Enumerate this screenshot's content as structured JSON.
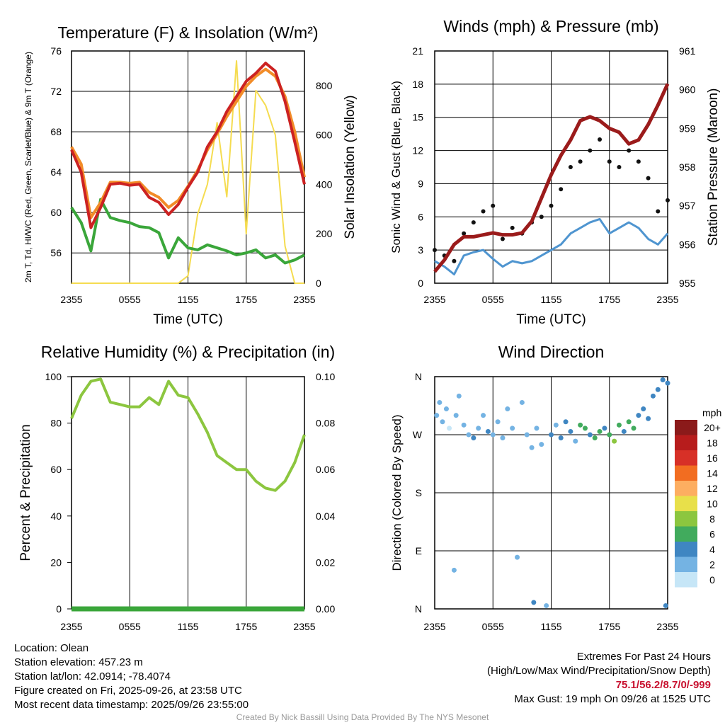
{
  "chart_data": [
    {
      "type": "line",
      "title": "Temperature (F) & Insolation (W/m²)",
      "xlabel": "Time (UTC)",
      "ylabel": "2m T, Td, HI/WC (Red, Green, Scarlet/Blue) & 9m T (Orange)",
      "ylabel_right": "Solar Insolation (Yellow)",
      "x_ticks": [
        "2355",
        "0555",
        "1155",
        "1755",
        "2355"
      ],
      "ylim": [
        53,
        76
      ],
      "y_ticks": [
        56,
        60,
        64,
        68,
        72,
        76
      ],
      "ylim_right": [
        0,
        940
      ],
      "y_ticks_right": [
        0,
        200,
        400,
        600,
        800
      ],
      "x_hours": [
        0,
        1,
        2,
        3,
        4,
        5,
        6,
        7,
        8,
        9,
        10,
        11,
        12,
        13,
        14,
        15,
        16,
        17,
        18,
        19,
        20,
        21,
        22,
        23,
        24
      ],
      "series": [
        {
          "name": "2m T",
          "color": "#cc2222",
          "axis": "left",
          "values": [
            66.2,
            64.0,
            58.5,
            60.5,
            62.8,
            62.9,
            62.7,
            62.8,
            61.5,
            61.0,
            59.8,
            60.8,
            62.5,
            64.0,
            66.5,
            68.0,
            70.0,
            71.5,
            73.0,
            73.8,
            74.8,
            74.0,
            71.0,
            67.0,
            62.8
          ]
        },
        {
          "name": "9m T",
          "color": "#f28c28",
          "axis": "left",
          "values": [
            66.5,
            64.8,
            59.5,
            61.0,
            63.0,
            63.0,
            62.9,
            63.0,
            62.0,
            61.5,
            60.5,
            61.2,
            62.6,
            64.2,
            66.2,
            67.8,
            69.5,
            71.0,
            72.5,
            73.5,
            74.2,
            73.5,
            71.5,
            68.0,
            63.5
          ]
        },
        {
          "name": "Td",
          "color": "#3aa63a",
          "axis": "left",
          "values": [
            60.5,
            59.0,
            56.2,
            61.3,
            59.5,
            59.2,
            59.0,
            58.6,
            58.5,
            58.0,
            55.5,
            57.5,
            56.5,
            56.3,
            56.8,
            56.5,
            56.2,
            55.8,
            56.0,
            56.3,
            55.5,
            55.8,
            55.0,
            55.3,
            55.8
          ]
        },
        {
          "name": "Solar Insolation",
          "color": "#f5dc50",
          "axis": "right",
          "values": [
            0,
            0,
            0,
            0,
            0,
            0,
            0,
            0,
            0,
            0,
            0,
            0,
            30,
            280,
            400,
            650,
            350,
            900,
            200,
            780,
            720,
            600,
            150,
            0,
            0
          ]
        }
      ]
    },
    {
      "type": "line",
      "title": "Winds (mph) & Pressure (mb)",
      "xlabel": "Time (UTC)",
      "ylabel": "Sonic Wind & Gust (Blue, Black)",
      "ylabel_right": "Station Pressure (Maroon)",
      "x_ticks": [
        "2355",
        "0555",
        "1155",
        "1755",
        "2355"
      ],
      "ylim": [
        0,
        21
      ],
      "y_ticks": [
        0,
        3,
        6,
        9,
        12,
        15,
        18,
        21
      ],
      "ylim_right": [
        955,
        961
      ],
      "y_ticks_right": [
        955,
        956,
        957,
        958,
        959,
        960,
        961
      ],
      "x_hours": [
        0,
        1,
        2,
        3,
        4,
        5,
        6,
        7,
        8,
        9,
        10,
        11,
        12,
        13,
        14,
        15,
        16,
        17,
        18,
        19,
        20,
        21,
        22,
        23,
        24
      ],
      "series": [
        {
          "name": "Sonic Wind",
          "color": "#4f95d0",
          "axis": "left",
          "values": [
            2.0,
            1.5,
            0.8,
            2.5,
            2.8,
            3.0,
            2.2,
            1.5,
            2.0,
            1.8,
            2.0,
            2.5,
            3.0,
            3.5,
            4.5,
            5.0,
            5.5,
            5.8,
            4.5,
            5.0,
            5.5,
            5.0,
            4.0,
            3.5,
            4.5
          ]
        },
        {
          "name": "Gust",
          "color": "#111111",
          "axis": "left",
          "style": "dots",
          "values": [
            3.0,
            2.5,
            2.0,
            4.5,
            5.5,
            6.5,
            7.0,
            4.0,
            5.0,
            4.5,
            5.5,
            6.0,
            7.0,
            8.5,
            10.5,
            11.0,
            12.0,
            13.0,
            11.0,
            10.5,
            12.0,
            11.0,
            9.5,
            6.5,
            7.5
          ]
        },
        {
          "name": "Station Pressure",
          "color": "#9b1b1b",
          "axis": "right",
          "values": [
            955.3,
            955.6,
            956.0,
            956.2,
            956.2,
            956.25,
            956.3,
            956.25,
            956.25,
            956.3,
            956.6,
            957.2,
            957.8,
            958.3,
            958.7,
            959.2,
            959.3,
            959.2,
            959.0,
            958.9,
            958.6,
            958.7,
            959.1,
            959.6,
            960.15
          ]
        }
      ]
    },
    {
      "type": "line",
      "title": "Relative Humidity (%) & Precipitation (in)",
      "xlabel": "",
      "ylabel": "Percent & Precipitation",
      "x_ticks": [
        "2355",
        "0555",
        "1155",
        "1755",
        "2355"
      ],
      "ylim": [
        0,
        100
      ],
      "y_ticks": [
        0,
        20,
        40,
        60,
        80,
        100
      ],
      "ylim_right": [
        0,
        0.1
      ],
      "y_ticks_right": [
        "0.00",
        "0.02",
        "0.04",
        "0.06",
        "0.08",
        "0.10"
      ],
      "x_hours": [
        0,
        1,
        2,
        3,
        4,
        5,
        6,
        7,
        8,
        9,
        10,
        11,
        12,
        13,
        14,
        15,
        16,
        17,
        18,
        19,
        20,
        21,
        22,
        23,
        24
      ],
      "series": [
        {
          "name": "Relative Humidity",
          "color": "#8cc63f",
          "axis": "left",
          "values": [
            82,
            92,
            98,
            99,
            89,
            88,
            87,
            87,
            91,
            88,
            98,
            92,
            91,
            84,
            76,
            66,
            63,
            60,
            60,
            55,
            52,
            51,
            55,
            63,
            75
          ]
        },
        {
          "name": "Precipitation",
          "color": "#3aa63a",
          "axis": "right",
          "values": [
            0,
            0,
            0,
            0,
            0,
            0,
            0,
            0,
            0,
            0,
            0,
            0,
            0,
            0,
            0,
            0,
            0,
            0,
            0,
            0,
            0,
            0,
            0,
            0,
            0
          ]
        }
      ]
    },
    {
      "type": "scatter",
      "title": "Wind Direction",
      "ylabel": "Direction (Colored By Speed)",
      "x_ticks": [
        "2355",
        "0555",
        "1155",
        "1755",
        "2355"
      ],
      "y_ticks": [
        "N",
        "E",
        "S",
        "W",
        "N"
      ],
      "ylim": [
        0,
        360
      ],
      "legend_title": "mph",
      "legend_labels": [
        "20+",
        "18",
        "16",
        "14",
        "12",
        "10",
        "8",
        "6",
        "4",
        "2",
        "0"
      ],
      "legend_colors": [
        "#8b1a1a",
        "#b71c1c",
        "#d73027",
        "#f26d21",
        "#fdae61",
        "#e8e04a",
        "#8cc63f",
        "#41ab5d",
        "#3f86c2",
        "#74b3e3",
        "#c6e6f7"
      ],
      "points": [
        {
          "hour": 0.2,
          "dir": 300,
          "speed": 1
        },
        {
          "hour": 0.5,
          "dir": 320,
          "speed": 1
        },
        {
          "hour": 0.8,
          "dir": 290,
          "speed": 2
        },
        {
          "hour": 1.2,
          "dir": 310,
          "speed": 1
        },
        {
          "hour": 1.5,
          "dir": 280,
          "speed": 0
        },
        {
          "hour": 2.0,
          "dir": 60,
          "speed": 2
        },
        {
          "hour": 2.2,
          "dir": 300,
          "speed": 2
        },
        {
          "hour": 2.5,
          "dir": 330,
          "speed": 1
        },
        {
          "hour": 3.0,
          "dir": 285,
          "speed": 2
        },
        {
          "hour": 3.5,
          "dir": 270,
          "speed": 2
        },
        {
          "hour": 4.0,
          "dir": 265,
          "speed": 3
        },
        {
          "hour": 4.5,
          "dir": 280,
          "speed": 2
        },
        {
          "hour": 5.0,
          "dir": 300,
          "speed": 2
        },
        {
          "hour": 5.5,
          "dir": 275,
          "speed": 3
        },
        {
          "hour": 6.0,
          "dir": 270,
          "speed": 2
        },
        {
          "hour": 6.5,
          "dir": 290,
          "speed": 1
        },
        {
          "hour": 7.0,
          "dir": 265,
          "speed": 2
        },
        {
          "hour": 7.5,
          "dir": 310,
          "speed": 1
        },
        {
          "hour": 8.0,
          "dir": 280,
          "speed": 2
        },
        {
          "hour": 8.5,
          "dir": 80,
          "speed": 2
        },
        {
          "hour": 9.0,
          "dir": 320,
          "speed": 2
        },
        {
          "hour": 9.5,
          "dir": 270,
          "speed": 2
        },
        {
          "hour": 10.0,
          "dir": 250,
          "speed": 2
        },
        {
          "hour": 10.2,
          "dir": 10,
          "speed": 3
        },
        {
          "hour": 10.5,
          "dir": 280,
          "speed": 2
        },
        {
          "hour": 11.0,
          "dir": 255,
          "speed": 2
        },
        {
          "hour": 11.5,
          "dir": 5,
          "speed": 2
        },
        {
          "hour": 12.0,
          "dir": 270,
          "speed": 3
        },
        {
          "hour": 12.5,
          "dir": 285,
          "speed": 2
        },
        {
          "hour": 13.0,
          "dir": 265,
          "speed": 4
        },
        {
          "hour": 13.5,
          "dir": 290,
          "speed": 3
        },
        {
          "hour": 14.0,
          "dir": 275,
          "speed": 4
        },
        {
          "hour": 14.5,
          "dir": 260,
          "speed": 2
        },
        {
          "hour": 15.0,
          "dir": 285,
          "speed": 5
        },
        {
          "hour": 15.5,
          "dir": 280,
          "speed": 6
        },
        {
          "hour": 16.0,
          "dir": 270,
          "speed": 4
        },
        {
          "hour": 16.5,
          "dir": 265,
          "speed": 6
        },
        {
          "hour": 17.0,
          "dir": 275,
          "speed": 5
        },
        {
          "hour": 17.5,
          "dir": 280,
          "speed": 4
        },
        {
          "hour": 18.0,
          "dir": 270,
          "speed": 6
        },
        {
          "hour": 18.5,
          "dir": 260,
          "speed": 7
        },
        {
          "hour": 19.0,
          "dir": 285,
          "speed": 6
        },
        {
          "hour": 19.5,
          "dir": 275,
          "speed": 4
        },
        {
          "hour": 20.0,
          "dir": 290,
          "speed": 6
        },
        {
          "hour": 20.5,
          "dir": 280,
          "speed": 5
        },
        {
          "hour": 21.0,
          "dir": 300,
          "speed": 4
        },
        {
          "hour": 21.5,
          "dir": 310,
          "speed": 3
        },
        {
          "hour": 22.0,
          "dir": 295,
          "speed": 4
        },
        {
          "hour": 22.5,
          "dir": 330,
          "speed": 3
        },
        {
          "hour": 23.0,
          "dir": 340,
          "speed": 3
        },
        {
          "hour": 23.5,
          "dir": 355,
          "speed": 3
        },
        {
          "hour": 23.8,
          "dir": 5,
          "speed": 4
        },
        {
          "hour": 24.0,
          "dir": 350,
          "speed": 3
        }
      ]
    }
  ],
  "footer": {
    "location": "Location: Olean",
    "elevation": "Station elevation: 457.23 m",
    "latlon": "Station lat/lon: 42.0914; -78.4074",
    "created": "Figure created on Fri, 2025-09-26, at 23:58 UTC",
    "recent": "Most recent data timestamp: 2025/09/26 23:55:00",
    "extremes_title": "Extremes For Past 24 Hours",
    "extremes_legend": "(High/Low/Max Wind/Precipitation/Snow Depth)",
    "extremes_values": "75.1/56.2/8.7/0/-999",
    "max_gust": "Max Gust: 19 mph On 09/26 at 1525 UTC",
    "credit": "Created By Nick Bassill Using Data Provided By The NYS Mesonet"
  }
}
